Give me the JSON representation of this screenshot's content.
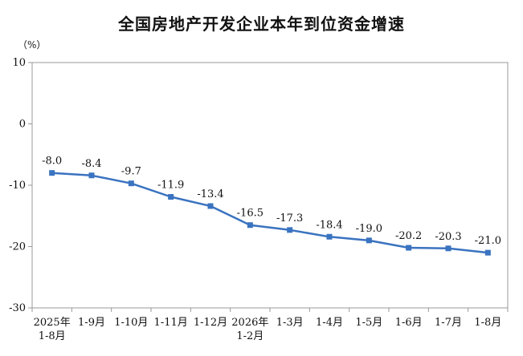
{
  "chart_data": {
    "type": "line",
    "title": "全国房地产开发企业本年到位资金增速",
    "ylabel": "（%）",
    "ylim": [
      -30,
      10
    ],
    "yticks": [
      10,
      0,
      -10,
      -20,
      -30
    ],
    "grid": false,
    "categories": [
      [
        "2025年",
        "1-8月"
      ],
      [
        "1-9月"
      ],
      [
        "1-10月"
      ],
      [
        "1-11月"
      ],
      [
        "1-12月"
      ],
      [
        "2026年",
        "1-2月"
      ],
      [
        "1-3月"
      ],
      [
        "1-4月"
      ],
      [
        "1-5月"
      ],
      [
        "1-6月"
      ],
      [
        "1-7月"
      ],
      [
        "1-8月"
      ]
    ],
    "series": [
      {
        "values": [
          -8.0,
          -8.4,
          -9.7,
          -11.9,
          -13.4,
          -16.5,
          -17.3,
          -18.4,
          -19.0,
          -20.2,
          -20.3,
          -21.0
        ],
        "labels": [
          "-8.0",
          "-8.4",
          "-9.7",
          "-11.9",
          "-13.4",
          "-16.5",
          "-17.3",
          "-18.4",
          "-19.0",
          "-20.2",
          "-20.3",
          "-21.0"
        ],
        "color": "#3a73c0"
      }
    ]
  }
}
